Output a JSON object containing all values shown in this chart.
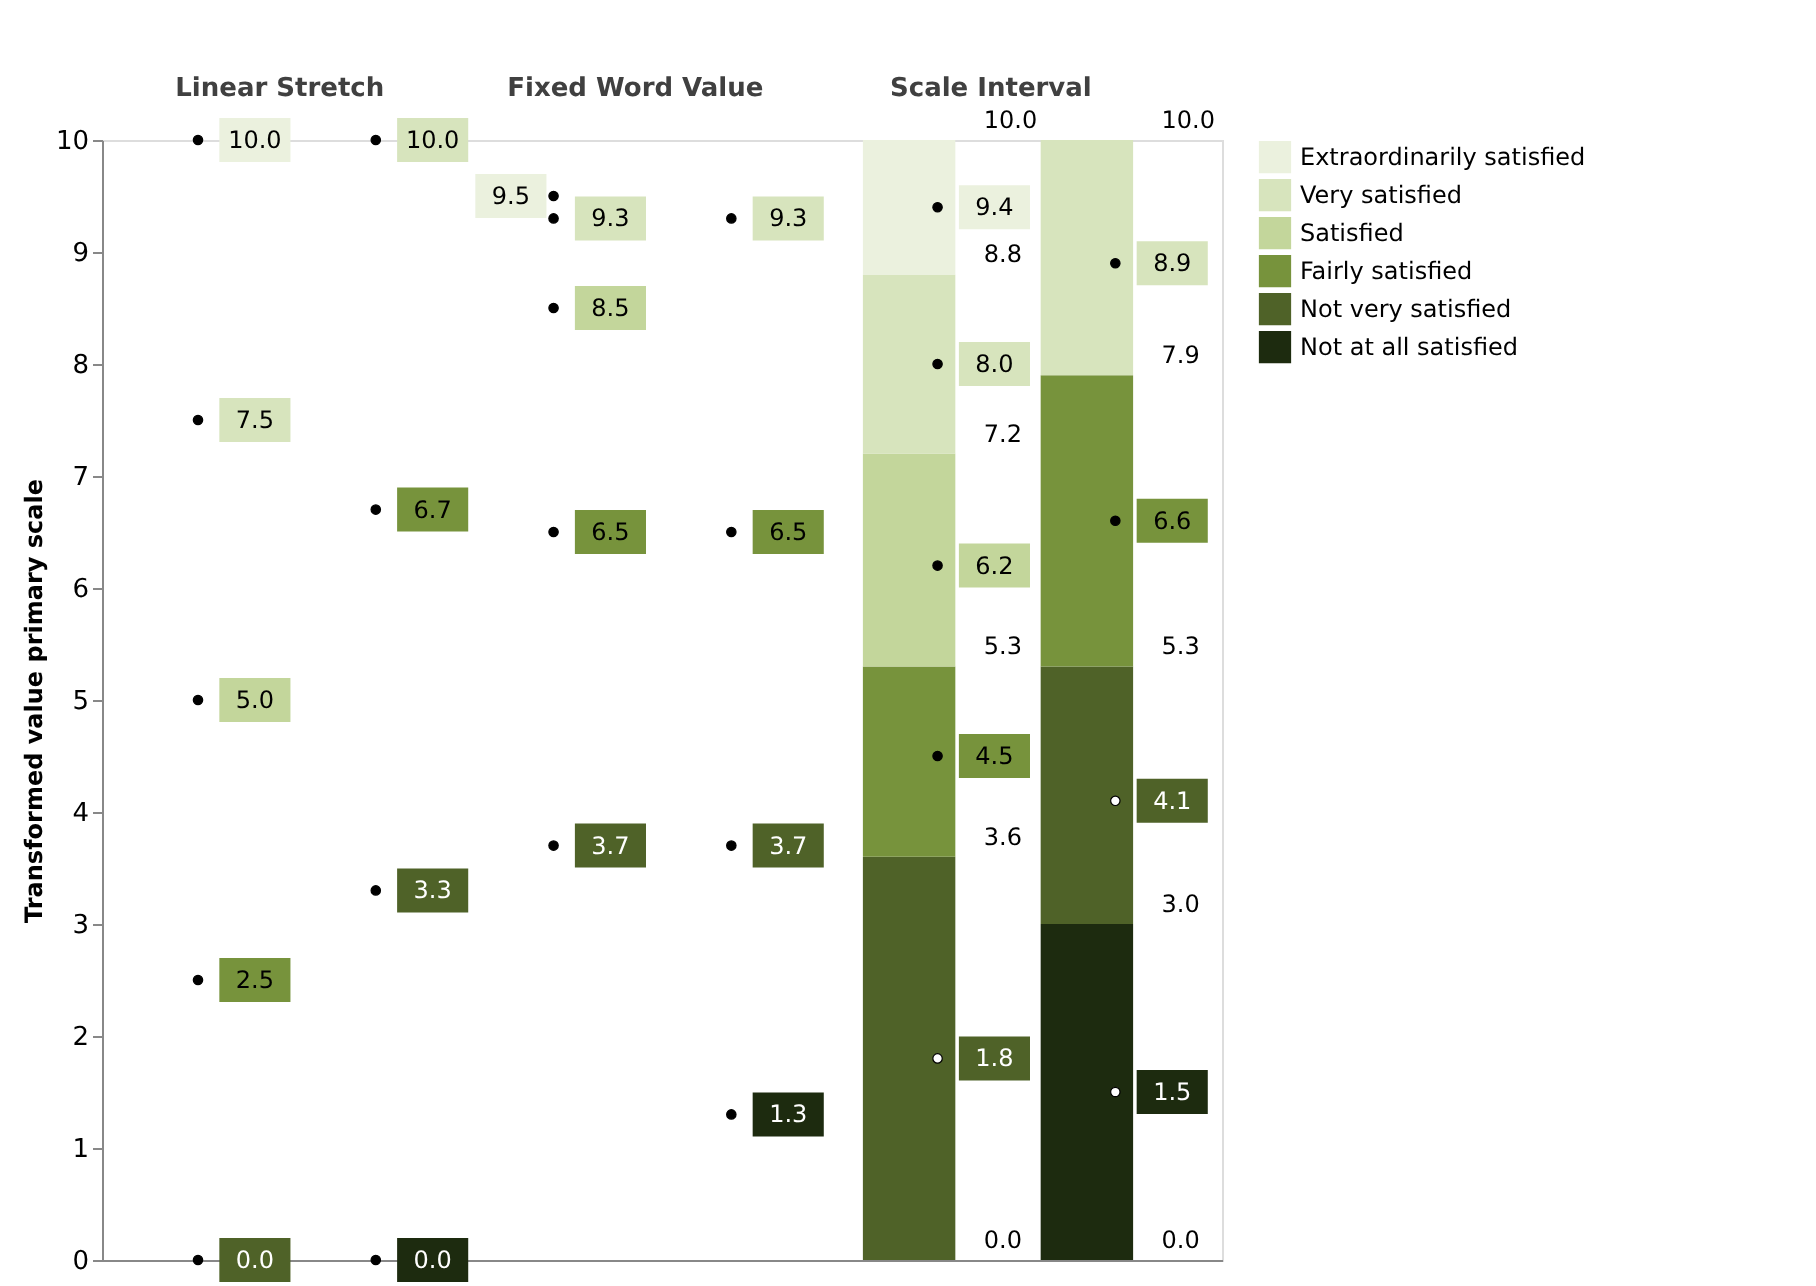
{
  "chart_data": {
    "type": "bar",
    "stacked": true,
    "categories": [
      null,
      null,
      null,
      null,
      null,
      null
    ],
    "ylabel": "Transformed value primary scale",
    "ylim": [
      0,
      10
    ],
    "yticks": [
      0,
      1,
      2,
      3,
      4,
      5,
      6,
      7,
      8,
      9,
      10
    ],
    "grid": false,
    "legend": "right",
    "marker": "circle",
    "annotations": [
      "Linear Stretch",
      "Fixed Word Value",
      "Scale Interval",
      "10.0",
      "8.8",
      "7.2",
      "5.3",
      "3.6",
      "0.0",
      "10.0",
      "7.9",
      "5.3",
      "3.0",
      "0.0"
    ],
    "series": [
      {
        "name": "Not at all satisfied",
        "color": "#1d2b0f",
        "values": [
          null,
          null,
          null,
          null,
          null,
          3.0
        ]
      },
      {
        "name": "Not very satisfied",
        "color": "#4f6228",
        "values": [
          null,
          null,
          null,
          null,
          3.6,
          2.3
        ]
      },
      {
        "name": "Fairly satisfied",
        "color": "#77933c",
        "values": [
          null,
          null,
          null,
          null,
          1.7,
          2.6
        ]
      },
      {
        "name": "Satisfied",
        "color": "#c3d69b",
        "values": [
          null,
          null,
          null,
          null,
          1.9,
          null
        ]
      },
      {
        "name": "Very satisfied",
        "color": "#d7e4bd",
        "values": [
          null,
          null,
          null,
          null,
          1.6,
          2.1
        ]
      },
      {
        "name": "Extraordinarily satisfied",
        "color": "#ebf1de",
        "values": [
          null,
          null,
          null,
          null,
          1.2,
          null
        ]
      },
      {
        "type": "scatter",
        "color": "#000000",
        "colors": [
          "#000000",
          "#000000",
          "#000000",
          "#000000",
          "#000000",
          "#ffffff"
        ],
        "values": [
          null,
          0.0,
          null,
          1.3,
          null,
          1.5
        ],
        "value_labels": [
          null,
          "0.0",
          null,
          "1.3",
          null,
          "1.5"
        ]
      },
      {
        "type": "scatter",
        "color": "#000000",
        "colors": [
          "#000000",
          "#000000",
          "#000000",
          "#000000",
          "#ffffff",
          "#ffffff"
        ],
        "values": [
          0.0,
          3.3,
          3.7,
          3.7,
          1.8,
          4.1
        ],
        "value_labels": [
          "0.0",
          "3.3",
          "3.7",
          "3.7",
          "1.8",
          "4.1"
        ]
      },
      {
        "type": "scatter",
        "color": "#000000",
        "values": [
          2.5,
          6.7,
          6.5,
          6.5,
          4.5,
          6.6
        ],
        "value_labels": [
          "2.5",
          "6.7",
          "6.5",
          "6.5",
          "4.5",
          "6.6"
        ]
      },
      {
        "type": "scatter",
        "color": "#000000",
        "values": [
          5.0,
          null,
          8.5,
          null,
          6.2,
          null
        ],
        "value_labels": [
          "5.0",
          null,
          "8.5",
          null,
          "6.2",
          null
        ]
      },
      {
        "type": "scatter",
        "color": "#000000",
        "values": [
          7.5,
          10.0,
          9.3,
          9.3,
          8.0,
          8.9
        ],
        "value_labels": [
          "7.5",
          "10.0",
          "9.3",
          "9.3",
          "8.0",
          "8.9"
        ]
      },
      {
        "type": "scatter",
        "color": "#000000",
        "values": [
          10.0,
          null,
          9.5,
          null,
          9.4,
          null
        ],
        "value_labels": [
          "10.0",
          null,
          "9.5",
          null,
          "9.4",
          null
        ]
      }
    ]
  }
}
